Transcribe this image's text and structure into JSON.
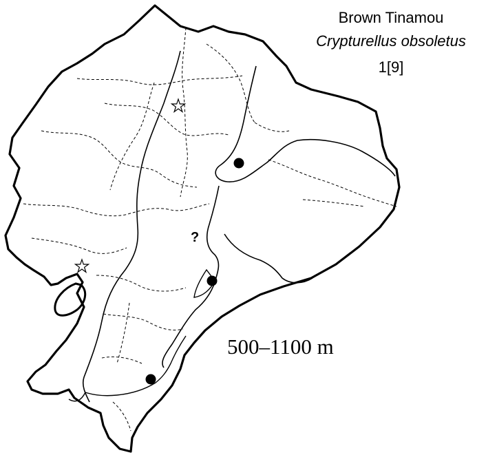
{
  "species": {
    "common_name": "Brown Tinamou",
    "scientific_name": "Crypturellus obsoletus",
    "map_code": "1[9]"
  },
  "elevation_range": "500–1100 m",
  "uncertain_marker": "?",
  "records": [
    {
      "type": "dot",
      "region": "northeast lowlands"
    },
    {
      "type": "dot",
      "region": "central east slope"
    },
    {
      "type": "dot",
      "region": "southeast slope"
    }
  ],
  "reference_stars": 2,
  "colors": {
    "ink": "#000000",
    "background": "#ffffff"
  }
}
